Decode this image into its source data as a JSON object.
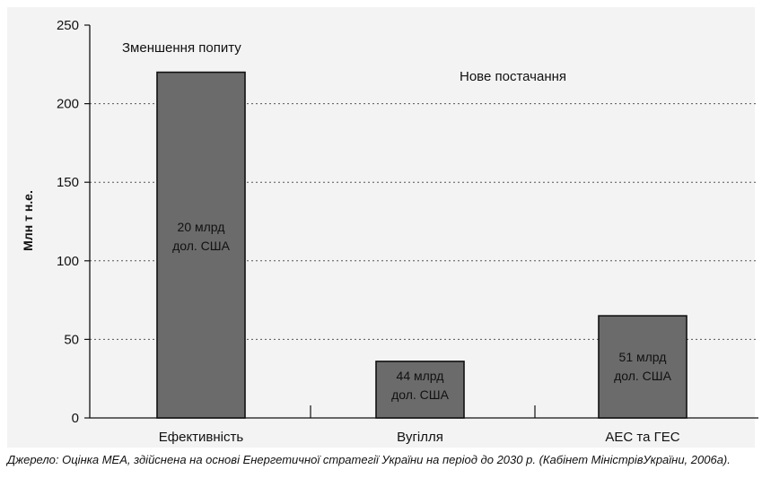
{
  "chart_data": {
    "type": "bar",
    "categories": [
      "Ефективність",
      "Вугілля",
      "АЕС та ГЕС"
    ],
    "values": [
      220,
      36,
      65
    ],
    "bar_labels": [
      [
        "20 млрд",
        "дол. США"
      ],
      [
        "44 млрд",
        "дол. США"
      ],
      [
        "51 млрд",
        "дол. США"
      ]
    ],
    "ylabel": "Млн т н.е.",
    "ylim": [
      0,
      250
    ],
    "yticks": [
      0,
      50,
      100,
      150,
      200,
      250
    ],
    "grid": "dotted horizontal",
    "annotations": [
      "Зменшення попиту",
      "Нове постачання"
    ],
    "colors": {
      "bar_fill": "#6b6b6b",
      "bar_stroke": "#111111",
      "panel_bg": "#f3f3f3",
      "grid": "#555555"
    }
  },
  "source_text": "Джерело: Оцінка МЕА, здійснена на основі Енергетичної стратегії України на період до 2030 р. (Кабінет МіністрівУкраїни, 2006а)."
}
